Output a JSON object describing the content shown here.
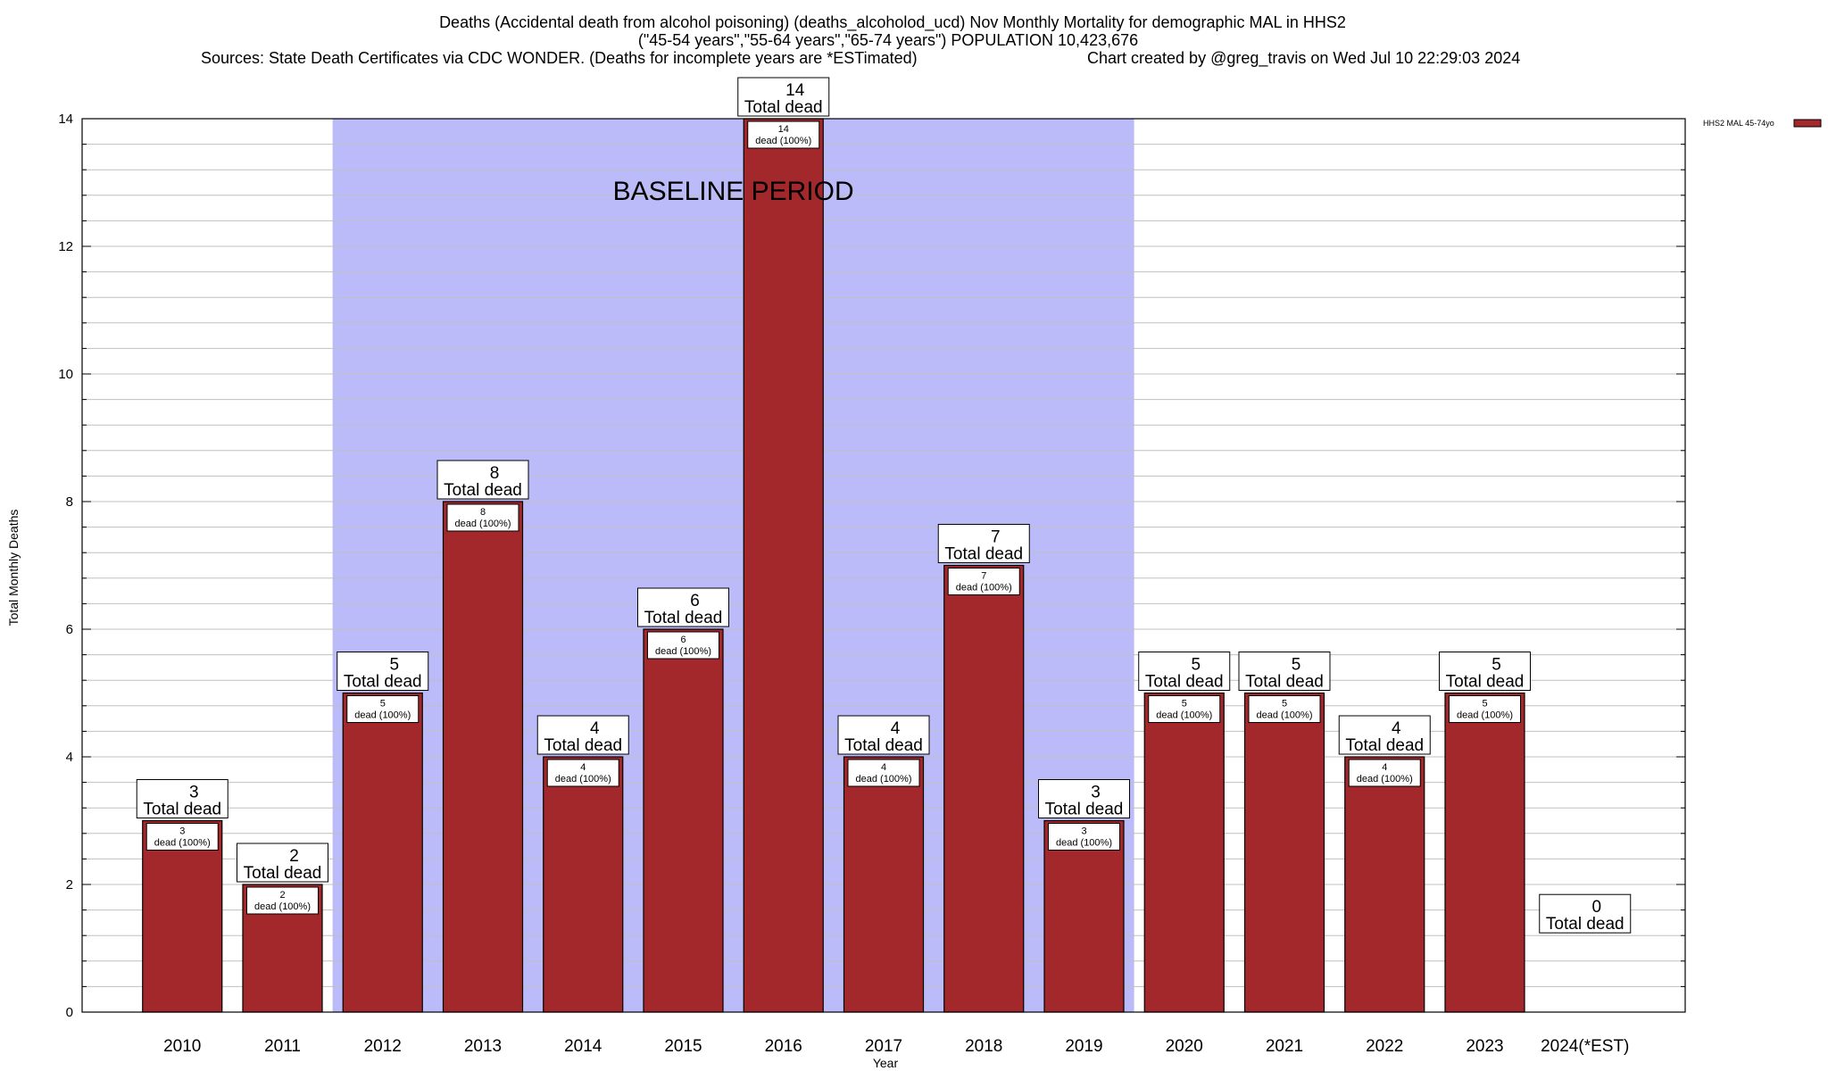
{
  "title_lines": [
    "Deaths (Accidental death from alcohol poisoning) (deaths_alcoholod_ucd) Nov Monthly Mortality for demographic MAL in HHS2",
    "(\"45-54 years\",\"55-64 years\",\"65-74 years\") POPULATION 10,423,676",
    "Sources: State Death Certificates via CDC WONDER. (Deaths for incomplete years are *ESTimated)",
    "Chart created by @greg_travis on Wed Jul 10 22:29:03 2024"
  ],
  "colors": {
    "bar": "#a3282b",
    "baseline_band": "#bbbbf9",
    "grid": "#c0c0c0"
  },
  "chart_data": {
    "type": "bar",
    "categories": [
      "2010",
      "2011",
      "2012",
      "2013",
      "2014",
      "2015",
      "2016",
      "2017",
      "2018",
      "2019",
      "2020",
      "2021",
      "2022",
      "2023",
      "2024(*EST)"
    ],
    "series": [
      {
        "name": "HHS2 MAL 45-74yo",
        "values": [
          3,
          2,
          5,
          8,
          4,
          6,
          14,
          4,
          7,
          3,
          5,
          5,
          4,
          5,
          0
        ]
      }
    ],
    "xlabel": "Year",
    "ylabel": "Total Monthly Deaths",
    "ylim": [
      0,
      14
    ],
    "yticks": [
      0,
      2,
      4,
      6,
      8,
      10,
      12,
      14
    ],
    "grid": true,
    "legend": "top-right",
    "baseline_period": {
      "label": "BASELINE PERIOD",
      "start": "2012",
      "end": "2019"
    },
    "total_label_suffix": "Total dead",
    "inner_label_suffix": "dead (100%)"
  }
}
